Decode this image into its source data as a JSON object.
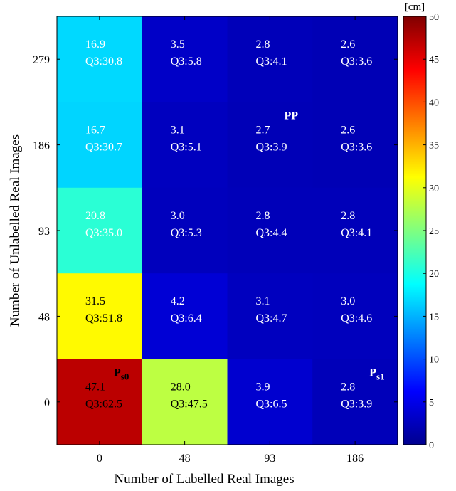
{
  "chart_data": {
    "type": "heatmap",
    "title": "",
    "xlabel": "Number of Labelled Real Images",
    "ylabel": "Number of Unlabelled Real Images",
    "x_categories": [
      "0",
      "48",
      "93",
      "186"
    ],
    "y_categories": [
      "0",
      "48",
      "93",
      "186",
      "279"
    ],
    "cells": [
      {
        "x": "0",
        "y": "279",
        "value": 16.9,
        "label": "16.9",
        "q3": "Q3:30.8"
      },
      {
        "x": "48",
        "y": "279",
        "value": 3.5,
        "label": "3.5",
        "q3": "Q3:5.8"
      },
      {
        "x": "93",
        "y": "279",
        "value": 2.8,
        "label": "2.8",
        "q3": "Q3:4.1"
      },
      {
        "x": "186",
        "y": "279",
        "value": 2.6,
        "label": "2.6",
        "q3": "Q3:3.6"
      },
      {
        "x": "0",
        "y": "186",
        "value": 16.7,
        "label": "16.7",
        "q3": "Q3:30.7"
      },
      {
        "x": "48",
        "y": "186",
        "value": 3.1,
        "label": "3.1",
        "q3": "Q3:5.1"
      },
      {
        "x": "93",
        "y": "186",
        "value": 2.7,
        "label": "2.7",
        "q3": "Q3:3.9"
      },
      {
        "x": "186",
        "y": "186",
        "value": 2.6,
        "label": "2.6",
        "q3": "Q3:3.6"
      },
      {
        "x": "0",
        "y": "93",
        "value": 20.8,
        "label": "20.8",
        "q3": "Q3:35.0"
      },
      {
        "x": "48",
        "y": "93",
        "value": 3.0,
        "label": "3.0",
        "q3": "Q3:5.3"
      },
      {
        "x": "93",
        "y": "93",
        "value": 2.8,
        "label": "2.8",
        "q3": "Q3:4.4"
      },
      {
        "x": "186",
        "y": "93",
        "value": 2.8,
        "label": "2.8",
        "q3": "Q3:4.1"
      },
      {
        "x": "0",
        "y": "48",
        "value": 31.5,
        "label": "31.5",
        "q3": "Q3:51.8"
      },
      {
        "x": "48",
        "y": "48",
        "value": 4.2,
        "label": "4.2",
        "q3": "Q3:6.4"
      },
      {
        "x": "93",
        "y": "48",
        "value": 3.1,
        "label": "3.1",
        "q3": "Q3:4.7"
      },
      {
        "x": "186",
        "y": "48",
        "value": 3.0,
        "label": "3.0",
        "q3": "Q3:4.6"
      },
      {
        "x": "0",
        "y": "0",
        "value": 47.1,
        "label": "47.1",
        "q3": "Q3:62.5"
      },
      {
        "x": "48",
        "y": "0",
        "value": 28.0,
        "label": "28.0",
        "q3": "Q3:47.5"
      },
      {
        "x": "93",
        "y": "0",
        "value": 3.9,
        "label": "3.9",
        "q3": "Q3:6.5"
      },
      {
        "x": "186",
        "y": "0",
        "value": 2.8,
        "label": "2.8",
        "q3": "Q3:3.9"
      }
    ],
    "annotations": [
      {
        "text": "P",
        "sub": "s0",
        "x": "0",
        "y": "0",
        "color": "#000000"
      },
      {
        "text": "PP",
        "sub": "",
        "x": "93",
        "y": "186",
        "color": "#ffffff"
      },
      {
        "text": "P",
        "sub": "s1",
        "x": "186",
        "y": "0",
        "color": "#ffffff"
      }
    ],
    "colorbar": {
      "unit": "[cm]",
      "range": [
        0,
        50
      ],
      "ticks": [
        "0",
        "5",
        "10",
        "15",
        "20",
        "25",
        "30",
        "35",
        "40",
        "45",
        "50"
      ],
      "colormap": "jet"
    },
    "grid": false,
    "legend": "none"
  }
}
